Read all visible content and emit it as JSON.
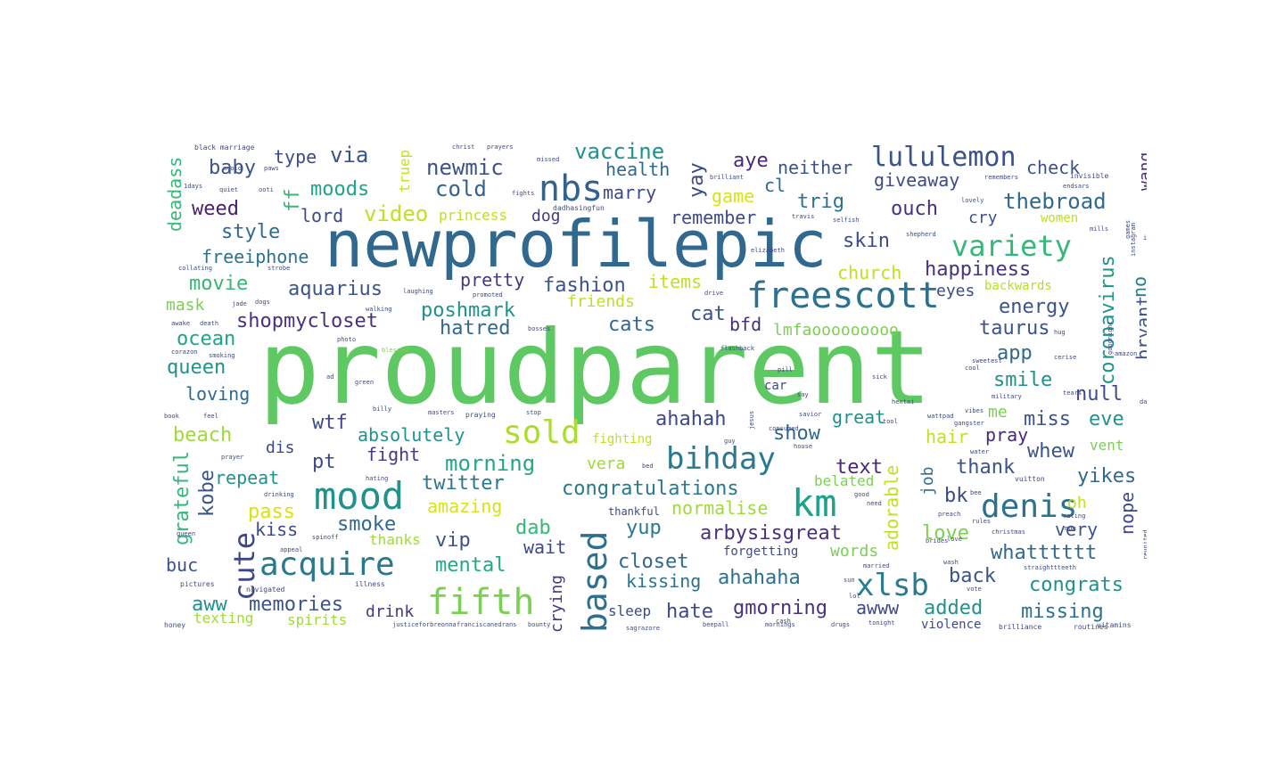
{
  "words": [
    {
      "text": "proudparent",
      "color": "#5ec962"
    },
    {
      "text": "newprofilepic",
      "color": "#31688e"
    },
    {
      "text": "freescott",
      "color": "#2c728e"
    },
    {
      "text": "variety",
      "color": "#35b779"
    },
    {
      "text": "nbs",
      "color": "#33638d"
    },
    {
      "text": "lululemon",
      "color": "#3b528b"
    },
    {
      "text": "mood",
      "color": "#21918c"
    },
    {
      "text": "acquire",
      "color": "#2a788e"
    },
    {
      "text": "km",
      "color": "#1fa187"
    },
    {
      "text": "denis",
      "color": "#2c728e"
    },
    {
      "text": "sold",
      "color": "#addc30"
    },
    {
      "text": "bihday",
      "color": "#2a788e"
    },
    {
      "text": "fifth",
      "color": "#7ad151"
    },
    {
      "text": "based",
      "color": "#2d708e"
    },
    {
      "text": "xlsb",
      "color": "#287c8e"
    },
    {
      "text": "cute",
      "color": "#3f4788"
    },
    {
      "text": "newmic",
      "color": "#3b528b"
    },
    {
      "text": "cold",
      "color": "#33638d"
    },
    {
      "text": "vaccine",
      "color": "#21918c"
    },
    {
      "text": "health",
      "color": "#31688e"
    },
    {
      "text": "marry",
      "color": "#3e4989"
    },
    {
      "text": "aye",
      "color": "#482878"
    },
    {
      "text": "neither",
      "color": "#3b528b"
    },
    {
      "text": "check",
      "color": "#3b528b"
    },
    {
      "text": "giveaway",
      "color": "#3e4a89"
    },
    {
      "text": "thebroad",
      "color": "#31688e"
    },
    {
      "text": "coronavirus",
      "color": "#21918c"
    },
    {
      "text": "baby",
      "color": "#3b528b"
    },
    {
      "text": "type",
      "color": "#3e4989"
    },
    {
      "text": "via",
      "color": "#3b528b"
    },
    {
      "text": "moods",
      "color": "#20a386"
    },
    {
      "text": "weed",
      "color": "#481f70"
    },
    {
      "text": "lord",
      "color": "#3e4989"
    },
    {
      "text": "video",
      "color": "#c2df23"
    },
    {
      "text": "style",
      "color": "#31688e"
    },
    {
      "text": "freeiphone",
      "color": "#2c728e"
    },
    {
      "text": "movie",
      "color": "#35b779"
    },
    {
      "text": "mask",
      "color": "#7ad151"
    },
    {
      "text": "aquarius",
      "color": "#3b528b"
    },
    {
      "text": "pretty",
      "color": "#443983"
    },
    {
      "text": "fashion",
      "color": "#3b528b"
    },
    {
      "text": "items",
      "color": "#c2df23"
    },
    {
      "text": "skin",
      "color": "#3e4a89"
    },
    {
      "text": "church",
      "color": "#bddf26"
    },
    {
      "text": "happiness",
      "color": "#46327e"
    },
    {
      "text": "trig",
      "color": "#2c728e"
    },
    {
      "text": "ouch",
      "color": "#46327e"
    },
    {
      "text": "cry",
      "color": "#3b528b"
    },
    {
      "text": "remember",
      "color": "#3e4989"
    },
    {
      "text": "game",
      "color": "#d8e219"
    },
    {
      "text": "cl",
      "color": "#31688e"
    },
    {
      "text": "yay",
      "color": "#3e4989"
    },
    {
      "text": "dog",
      "color": "#443983"
    },
    {
      "text": "princess",
      "color": "#bddf26"
    },
    {
      "text": "women",
      "color": "#bddf26"
    },
    {
      "text": "no",
      "color": "#287c8e"
    },
    {
      "text": "bryant",
      "color": "#3b528b"
    },
    {
      "text": "wang",
      "color": "#472d7b"
    },
    {
      "text": "deadass",
      "color": "#35b779"
    },
    {
      "text": "truep",
      "color": "#c8e020"
    },
    {
      "text": "ff",
      "color": "#35b779"
    },
    {
      "text": "shopmycloset",
      "color": "#46327e"
    },
    {
      "text": "poshmark",
      "color": "#21918c"
    },
    {
      "text": "hatred",
      "color": "#31688e"
    },
    {
      "text": "friends",
      "color": "#bddf26"
    },
    {
      "text": "cats",
      "color": "#31688e"
    },
    {
      "text": "cat",
      "color": "#3b528b"
    },
    {
      "text": "bfd",
      "color": "#472d7b"
    },
    {
      "text": "lmfaooooooooo",
      "color": "#7ad151"
    },
    {
      "text": "eyes",
      "color": "#3e4989"
    },
    {
      "text": "energy",
      "color": "#3b528b"
    },
    {
      "text": "taurus",
      "color": "#3b528b"
    },
    {
      "text": "backwards",
      "color": "#b5de2b"
    },
    {
      "text": "ocean",
      "color": "#20a386"
    },
    {
      "text": "queen",
      "color": "#21918c"
    },
    {
      "text": "loving",
      "color": "#31688e"
    },
    {
      "text": "app",
      "color": "#31688e"
    },
    {
      "text": "smile",
      "color": "#21918c"
    },
    {
      "text": "null",
      "color": "#3e4989"
    },
    {
      "text": "car",
      "color": "#3e4989"
    },
    {
      "text": "beach",
      "color": "#a0da39"
    },
    {
      "text": "wtf",
      "color": "#3e4989"
    },
    {
      "text": "dis",
      "color": "#3e4989"
    },
    {
      "text": "absolutely",
      "color": "#21918c"
    },
    {
      "text": "ahahah",
      "color": "#3e4989"
    },
    {
      "text": "show",
      "color": "#31688e"
    },
    {
      "text": "great",
      "color": "#21918c"
    },
    {
      "text": "me",
      "color": "#7ad151"
    },
    {
      "text": "miss",
      "color": "#3b528b"
    },
    {
      "text": "eve",
      "color": "#21918c"
    },
    {
      "text": "hair",
      "color": "#c2df23"
    },
    {
      "text": "pray",
      "color": "#482878"
    },
    {
      "text": "pt",
      "color": "#3e4989"
    },
    {
      "text": "fight",
      "color": "#443983"
    },
    {
      "text": "morning",
      "color": "#22a884"
    },
    {
      "text": "vera",
      "color": "#a0da39"
    },
    {
      "text": "fighting",
      "color": "#c2df23"
    },
    {
      "text": "text",
      "color": "#482878"
    },
    {
      "text": "thank",
      "color": "#3b528b"
    },
    {
      "text": "whew",
      "color": "#3b528b"
    },
    {
      "text": "vent",
      "color": "#7ad151"
    },
    {
      "text": "yikes",
      "color": "#31688e"
    },
    {
      "text": "adorable",
      "color": "#c2df23"
    },
    {
      "text": "job",
      "color": "#31688e"
    },
    {
      "text": "kobe",
      "color": "#3b528b"
    },
    {
      "text": "grateful",
      "color": "#35b779"
    },
    {
      "text": "repeat",
      "color": "#21918c"
    },
    {
      "text": "twitter",
      "color": "#2a788e"
    },
    {
      "text": "congratulations",
      "color": "#2a788e"
    },
    {
      "text": "pass",
      "color": "#d8e219"
    },
    {
      "text": "amazing",
      "color": "#d8e219"
    },
    {
      "text": "normalise",
      "color": "#a0da39"
    },
    {
      "text": "belated",
      "color": "#7ad151"
    },
    {
      "text": "bk",
      "color": "#3e4989"
    },
    {
      "text": "oh",
      "color": "#c2df23"
    },
    {
      "text": "nope",
      "color": "#3e4989"
    },
    {
      "text": "kiss",
      "color": "#3e4989"
    },
    {
      "text": "smoke",
      "color": "#31688e"
    },
    {
      "text": "dab",
      "color": "#35b779"
    },
    {
      "text": "yup",
      "color": "#2a788e"
    },
    {
      "text": "arbysisgreat",
      "color": "#46327e"
    },
    {
      "text": "love",
      "color": "#7ad151"
    },
    {
      "text": "very",
      "color": "#3b528b"
    },
    {
      "text": "buc",
      "color": "#3b528b"
    },
    {
      "text": "vip",
      "color": "#3b528b"
    },
    {
      "text": "wait",
      "color": "#3e4989"
    },
    {
      "text": "thanks",
      "color": "#a0da39"
    },
    {
      "text": "mental",
      "color": "#22a884"
    },
    {
      "text": "crying",
      "color": "#443983"
    },
    {
      "text": "closet",
      "color": "#31688e"
    },
    {
      "text": "words",
      "color": "#7ad151"
    },
    {
      "text": "forgetting",
      "color": "#3e4989"
    },
    {
      "text": "whatttttt",
      "color": "#31688e"
    },
    {
      "text": "back",
      "color": "#3b528b"
    },
    {
      "text": "congrats",
      "color": "#21918c"
    },
    {
      "text": "aww",
      "color": "#21918c"
    },
    {
      "text": "memories",
      "color": "#3b528b"
    },
    {
      "text": "drink",
      "color": "#443983"
    },
    {
      "text": "kissing",
      "color": "#2c728e"
    },
    {
      "text": "ahahaha",
      "color": "#2c728e"
    },
    {
      "text": "hate",
      "color": "#3e4989"
    },
    {
      "text": "gmorning",
      "color": "#46327e"
    },
    {
      "text": "awww",
      "color": "#3e4989"
    },
    {
      "text": "added",
      "color": "#21918c"
    },
    {
      "text": "missing",
      "color": "#2c728e"
    },
    {
      "text": "texting",
      "color": "#a0da39"
    },
    {
      "text": "spirits",
      "color": "#a0da39"
    },
    {
      "text": "sleep",
      "color": "#3e4989"
    },
    {
      "text": "violence",
      "color": "#3e4989"
    },
    {
      "text": "black marriage",
      "color": "#3e4989"
    },
    {
      "text": "christ",
      "color": "#3e4989"
    },
    {
      "text": "prayers",
      "color": "#3e4989"
    },
    {
      "text": "missed",
      "color": "#3e4989"
    },
    {
      "text": "remembers",
      "color": "#3e4989"
    },
    {
      "text": "brilliant",
      "color": "#3e4989"
    },
    {
      "text": "invisible",
      "color": "#3e4989"
    },
    {
      "text": "endsars",
      "color": "#3e4989"
    },
    {
      "text": "avoid",
      "color": "#3e4989"
    },
    {
      "text": "paws",
      "color": "#3e4989"
    },
    {
      "text": "1days",
      "color": "#3e4989"
    },
    {
      "text": "quiet",
      "color": "#3e4989"
    },
    {
      "text": "ooti",
      "color": "#3e4989"
    },
    {
      "text": "fights",
      "color": "#3e4989"
    },
    {
      "text": "lovely",
      "color": "#3e4989"
    },
    {
      "text": "dadhasingfun",
      "color": "#3e4989"
    },
    {
      "text": "travis",
      "color": "#3e4989"
    },
    {
      "text": "selfish",
      "color": "#3e4989"
    },
    {
      "text": "blessed",
      "color": "#7ad151"
    },
    {
      "text": "green",
      "color": "#3e4989"
    },
    {
      "text": "billy",
      "color": "#3e4989"
    },
    {
      "text": "masters",
      "color": "#3e4989"
    },
    {
      "text": "praying",
      "color": "#3e4989"
    },
    {
      "text": "prayer",
      "color": "#3e4989"
    },
    {
      "text": "drinking",
      "color": "#3e4989"
    },
    {
      "text": "hating",
      "color": "#3e4989"
    },
    {
      "text": "christmas",
      "color": "#3e4989"
    },
    {
      "text": "vuitton",
      "color": "#3e4989"
    },
    {
      "text": "thankful",
      "color": "#3e4989"
    },
    {
      "text": "appeal",
      "color": "#3e4989"
    },
    {
      "text": "spinoff",
      "color": "#3e4989"
    },
    {
      "text": "married",
      "color": "#3e4989"
    },
    {
      "text": "pictures",
      "color": "#3e4989"
    },
    {
      "text": "navigated",
      "color": "#3e4989"
    },
    {
      "text": "illness",
      "color": "#3e4989"
    },
    {
      "text": "vitamins",
      "color": "#3e4989"
    },
    {
      "text": "brilliance",
      "color": "#3e4989"
    },
    {
      "text": "routines",
      "color": "#3e4989"
    },
    {
      "text": "honey",
      "color": "#3e4989"
    },
    {
      "text": "justiceforbreonna",
      "color": "#3e4989"
    },
    {
      "text": "franciscanedrans",
      "color": "#3e4989"
    },
    {
      "text": "sagrazore",
      "color": "#3e4989"
    },
    {
      "text": "beepall",
      "color": "#3e4989"
    },
    {
      "text": "mornings",
      "color": "#3e4989"
    },
    {
      "text": "tonight",
      "color": "#3e4989"
    },
    {
      "text": "laughing",
      "color": "#3e4989"
    },
    {
      "text": "promoted",
      "color": "#3e4989"
    },
    {
      "text": "drive",
      "color": "#3e4989"
    },
    {
      "text": "walking",
      "color": "#3e4989"
    },
    {
      "text": "photo",
      "color": "#3e4989"
    },
    {
      "text": "corazon",
      "color": "#3e4989"
    },
    {
      "text": "smoking",
      "color": "#3e4989"
    },
    {
      "text": "awake",
      "color": "#3e4989"
    },
    {
      "text": "death",
      "color": "#3e4989"
    },
    {
      "text": "strobe",
      "color": "#3e4989"
    },
    {
      "text": "collating",
      "color": "#3e4989"
    },
    {
      "text": "bosses",
      "color": "#3e4989"
    },
    {
      "text": "elizabeth",
      "color": "#3e4989"
    },
    {
      "text": "shepherd",
      "color": "#3e4989"
    },
    {
      "text": "military",
      "color": "#3e4989"
    },
    {
      "text": "tears",
      "color": "#3e4989"
    },
    {
      "text": "flashback",
      "color": "#3e4989"
    },
    {
      "text": "hentai",
      "color": "#3e4989"
    },
    {
      "text": "consumed",
      "color": "#3e4989"
    },
    {
      "text": "savior",
      "color": "#3e4989"
    },
    {
      "text": "wattpad",
      "color": "#3e4989"
    },
    {
      "text": "gangster",
      "color": "#3e4989"
    },
    {
      "text": "preach",
      "color": "#3e4989"
    },
    {
      "text": "rules",
      "color": "#3e4989"
    },
    {
      "text": "bee",
      "color": "#3e4989"
    },
    {
      "text": "jesus",
      "color": "#3e4989"
    },
    {
      "text": "house",
      "color": "#3e4989"
    },
    {
      "text": "good",
      "color": "#3e4989"
    },
    {
      "text": "need",
      "color": "#3e4989"
    },
    {
      "text": "rating",
      "color": "#3e4989"
    },
    {
      "text": "straighttteeth",
      "color": "#3e4989"
    },
    {
      "text": "sweetest",
      "color": "#3e4989"
    },
    {
      "text": "goodnight",
      "color": "#3e4989"
    },
    {
      "text": "instagram",
      "color": "#3e4989"
    },
    {
      "text": "games",
      "color": "#3e4989"
    },
    {
      "text": "idea",
      "color": "#3e4989"
    },
    {
      "text": "mills",
      "color": "#3e4989"
    },
    {
      "text": "amazon",
      "color": "#3e4989"
    },
    {
      "text": "sick",
      "color": "#3e4989"
    },
    {
      "text": "vibes",
      "color": "#3e4989"
    },
    {
      "text": "water",
      "color": "#3e4989"
    },
    {
      "text": "brides",
      "color": "#3e4989"
    },
    {
      "text": "reunited",
      "color": "#3e4989"
    },
    {
      "text": "queen",
      "color": "#3e4989"
    },
    {
      "text": "cerise",
      "color": "#3e4989"
    },
    {
      "text": "mom",
      "color": "#3e4989"
    },
    {
      "text": "ad",
      "color": "#3e4989"
    },
    {
      "text": "cash",
      "color": "#3e4989"
    },
    {
      "text": "sun",
      "color": "#3e4989"
    },
    {
      "text": "tool",
      "color": "#3e4989"
    },
    {
      "text": "book",
      "color": "#3e4989"
    },
    {
      "text": "feel",
      "color": "#3e4989"
    },
    {
      "text": "love",
      "color": "#3e4989"
    },
    {
      "text": "lol",
      "color": "#3e4989"
    },
    {
      "text": "guy",
      "color": "#3e4989"
    },
    {
      "text": "say",
      "color": "#3e4989"
    },
    {
      "text": "day",
      "color": "#3e4989"
    },
    {
      "text": "pill",
      "color": "#3e4989"
    },
    {
      "text": "stop",
      "color": "#3e4989"
    },
    {
      "text": "jade",
      "color": "#3e4989"
    },
    {
      "text": "dogs",
      "color": "#3e4989"
    },
    {
      "text": "drugs",
      "color": "#3e4989"
    },
    {
      "text": "bed",
      "color": "#3e4989"
    },
    {
      "text": "bounty",
      "color": "#3e4989"
    },
    {
      "text": "vote",
      "color": "#3e4989"
    },
    {
      "text": "wash",
      "color": "#3e4989"
    },
    {
      "text": "cool",
      "color": "#3e4989"
    },
    {
      "text": "hug",
      "color": "#3e4989"
    }
  ]
}
